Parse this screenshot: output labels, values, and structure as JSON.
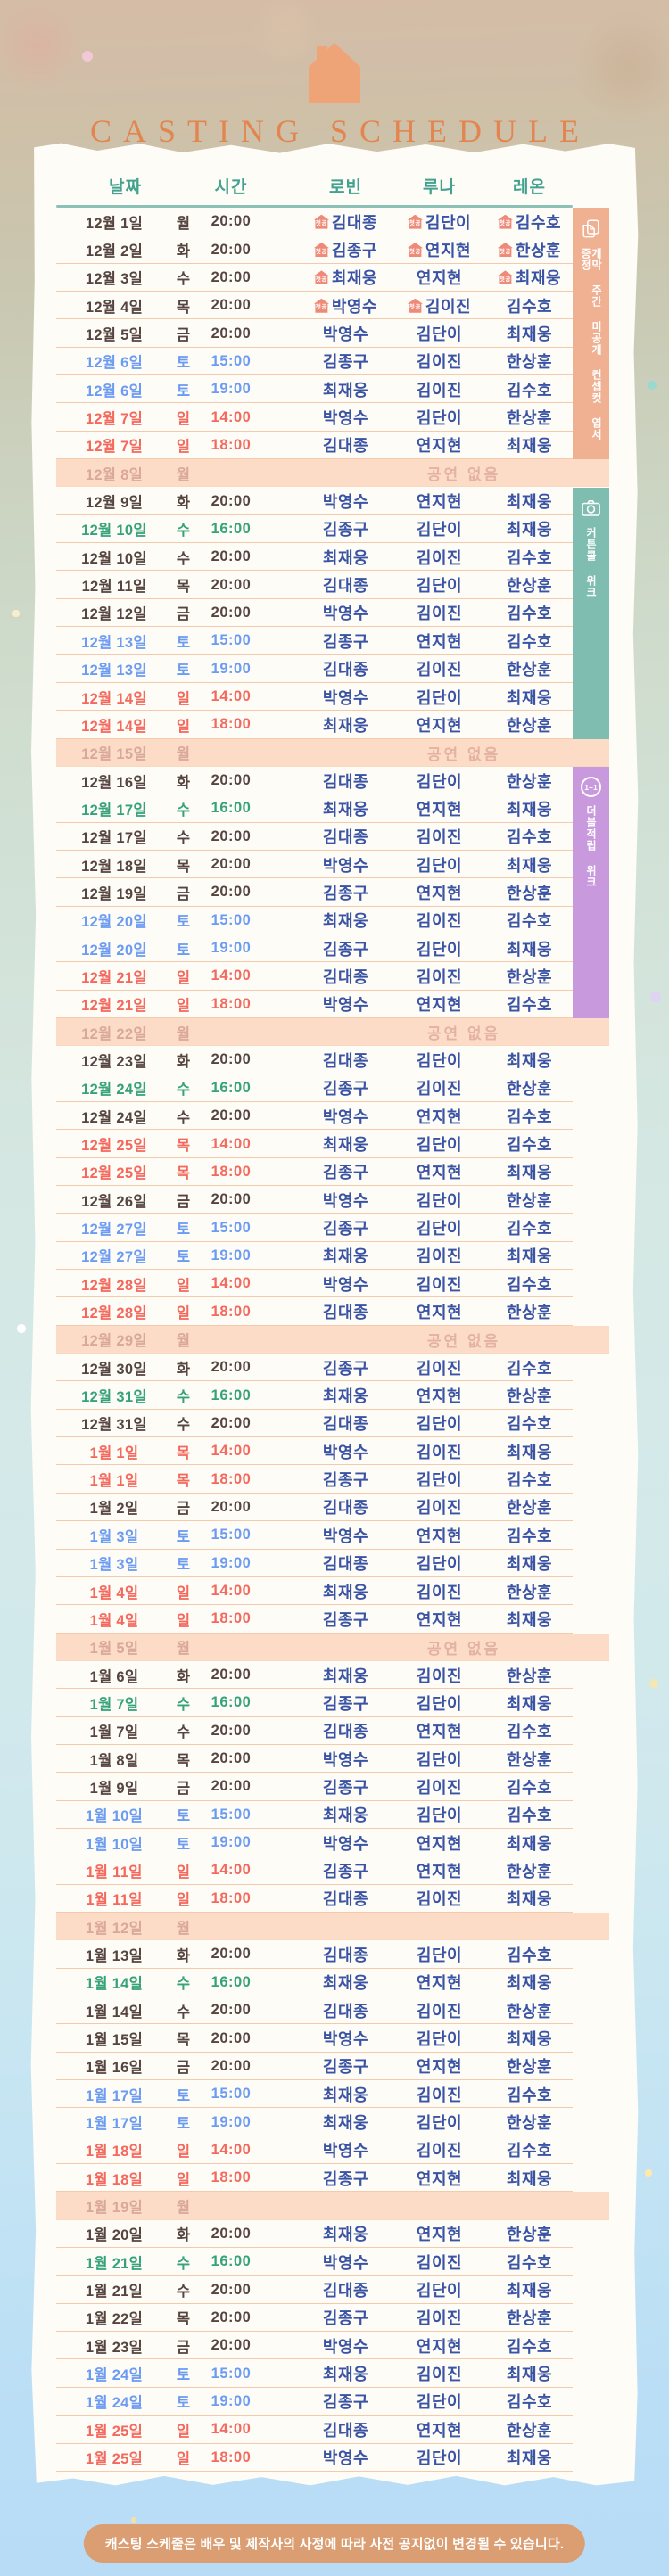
{
  "title": "CASTING SCHEDULE",
  "footer_note": "캐스팅 스케줄은 배우 및 제작사의 사정에 따라 사전 공지없이 변경될 수 있습니다.",
  "no_show_label": "공연 없음",
  "badge_label": "첫공",
  "colors": {
    "weekday": "#554440",
    "saturday": "#6b9bf2",
    "sunday": "#f4685d",
    "matinee": "#35a279",
    "noshow_text": "#d9a89a",
    "noshow_label": "#e3b2a1",
    "noshow_bg": "#fcdcc6",
    "name": "#3b53a4",
    "badge_bg": "#ef8a79",
    "header": "#43a18f",
    "title_accent": "#e2854f",
    "logo": "#efa478"
  },
  "side_events": [
    {
      "id": "opening-week",
      "icon": "postcard-icon",
      "label": "개막 주간 미공개 컨셉컷 엽서 증정",
      "color": "#f0b092",
      "row_start": 1,
      "row_end": 9
    },
    {
      "id": "curtain-call-week",
      "icon": "camera-icon",
      "label": "커튼콜 위크",
      "color": "#7fbdb0",
      "row_start": 11,
      "row_end": 19
    },
    {
      "id": "double-points-week",
      "icon": "one-plus-one-icon",
      "icon_text": "1+1",
      "label": "더블적립 위크",
      "color": "#c89add",
      "row_start": 21,
      "row_end": 29
    }
  ],
  "table": {
    "columns": [
      "날짜",
      "시간",
      "로빈",
      "루나",
      "레온"
    ],
    "rows": [
      {
        "date": "12월 1일",
        "day": "월",
        "time": "20:00",
        "type": "weekday",
        "robin": "김대종",
        "luna": "김단이",
        "leon": "김수호",
        "debut": [
          "robin",
          "luna",
          "leon"
        ]
      },
      {
        "date": "12월 2일",
        "day": "화",
        "time": "20:00",
        "type": "weekday",
        "robin": "김종구",
        "luna": "연지현",
        "leon": "한상훈",
        "debut": [
          "robin",
          "luna",
          "leon"
        ]
      },
      {
        "date": "12월 3일",
        "day": "수",
        "time": "20:00",
        "type": "weekday",
        "robin": "최재웅",
        "luna": "연지현",
        "leon": "최재웅",
        "debut": [
          "robin",
          "leon"
        ]
      },
      {
        "date": "12월 4일",
        "day": "목",
        "time": "20:00",
        "type": "weekday",
        "robin": "박영수",
        "luna": "김이진",
        "leon": "김수호",
        "debut": [
          "robin",
          "luna"
        ]
      },
      {
        "date": "12월 5일",
        "day": "금",
        "time": "20:00",
        "type": "weekday",
        "robin": "박영수",
        "luna": "김단이",
        "leon": "최재웅"
      },
      {
        "date": "12월 6일",
        "day": "토",
        "time": "15:00",
        "type": "saturday",
        "robin": "김종구",
        "luna": "김이진",
        "leon": "한상훈"
      },
      {
        "date": "12월 6일",
        "day": "토",
        "time": "19:00",
        "type": "saturday",
        "robin": "최재웅",
        "luna": "김이진",
        "leon": "김수호"
      },
      {
        "date": "12월 7일",
        "day": "일",
        "time": "14:00",
        "type": "sunday",
        "robin": "박영수",
        "luna": "김단이",
        "leon": "한상훈"
      },
      {
        "date": "12월 7일",
        "day": "일",
        "time": "18:00",
        "type": "sunday",
        "robin": "김대종",
        "luna": "연지현",
        "leon": "최재웅"
      },
      {
        "date": "12월 8일",
        "day": "월",
        "type": "noshow",
        "show_label": true
      },
      {
        "date": "12월 9일",
        "day": "화",
        "time": "20:00",
        "type": "weekday",
        "robin": "박영수",
        "luna": "연지현",
        "leon": "최재웅"
      },
      {
        "date": "12월 10일",
        "day": "수",
        "time": "16:00",
        "type": "matinee",
        "robin": "김종구",
        "luna": "김단이",
        "leon": "최재웅"
      },
      {
        "date": "12월 10일",
        "day": "수",
        "time": "20:00",
        "type": "weekday",
        "robin": "최재웅",
        "luna": "김이진",
        "leon": "김수호"
      },
      {
        "date": "12월 11일",
        "day": "목",
        "time": "20:00",
        "type": "weekday",
        "robin": "김대종",
        "luna": "김단이",
        "leon": "한상훈"
      },
      {
        "date": "12월 12일",
        "day": "금",
        "time": "20:00",
        "type": "weekday",
        "robin": "박영수",
        "luna": "김이진",
        "leon": "김수호"
      },
      {
        "date": "12월 13일",
        "day": "토",
        "time": "15:00",
        "type": "saturday",
        "robin": "김종구",
        "luna": "연지현",
        "leon": "김수호"
      },
      {
        "date": "12월 13일",
        "day": "토",
        "time": "19:00",
        "type": "saturday",
        "robin": "김대종",
        "luna": "김이진",
        "leon": "한상훈"
      },
      {
        "date": "12월 14일",
        "day": "일",
        "time": "14:00",
        "type": "sunday",
        "robin": "박영수",
        "luna": "김단이",
        "leon": "최재웅"
      },
      {
        "date": "12월 14일",
        "day": "일",
        "time": "18:00",
        "type": "sunday",
        "robin": "최재웅",
        "luna": "연지현",
        "leon": "한상훈"
      },
      {
        "date": "12월 15일",
        "day": "월",
        "type": "noshow",
        "show_label": true
      },
      {
        "date": "12월 16일",
        "day": "화",
        "time": "20:00",
        "type": "weekday",
        "robin": "김대종",
        "luna": "김단이",
        "leon": "한상훈"
      },
      {
        "date": "12월 17일",
        "day": "수",
        "time": "16:00",
        "type": "matinee",
        "robin": "최재웅",
        "luna": "연지현",
        "leon": "최재웅"
      },
      {
        "date": "12월 17일",
        "day": "수",
        "time": "20:00",
        "type": "weekday",
        "robin": "김대종",
        "luna": "김이진",
        "leon": "김수호"
      },
      {
        "date": "12월 18일",
        "day": "목",
        "time": "20:00",
        "type": "weekday",
        "robin": "박영수",
        "luna": "김단이",
        "leon": "최재웅"
      },
      {
        "date": "12월 19일",
        "day": "금",
        "time": "20:00",
        "type": "weekday",
        "robin": "김종구",
        "luna": "연지현",
        "leon": "한상훈"
      },
      {
        "date": "12월 20일",
        "day": "토",
        "time": "15:00",
        "type": "saturday",
        "robin": "최재웅",
        "luna": "김이진",
        "leon": "김수호"
      },
      {
        "date": "12월 20일",
        "day": "토",
        "time": "19:00",
        "type": "saturday",
        "robin": "김종구",
        "luna": "김단이",
        "leon": "최재웅"
      },
      {
        "date": "12월 21일",
        "day": "일",
        "time": "14:00",
        "type": "sunday",
        "robin": "김대종",
        "luna": "김이진",
        "leon": "한상훈"
      },
      {
        "date": "12월 21일",
        "day": "일",
        "time": "18:00",
        "type": "sunday",
        "robin": "박영수",
        "luna": "연지현",
        "leon": "김수호"
      },
      {
        "date": "12월 22일",
        "day": "월",
        "type": "noshow",
        "show_label": true
      },
      {
        "date": "12월 23일",
        "day": "화",
        "time": "20:00",
        "type": "weekday",
        "robin": "김대종",
        "luna": "김단이",
        "leon": "최재웅"
      },
      {
        "date": "12월 24일",
        "day": "수",
        "time": "16:00",
        "type": "matinee",
        "robin": "김종구",
        "luna": "김이진",
        "leon": "한상훈"
      },
      {
        "date": "12월 24일",
        "day": "수",
        "time": "20:00",
        "type": "weekday",
        "robin": "박영수",
        "luna": "연지현",
        "leon": "김수호"
      },
      {
        "date": "12월 25일",
        "day": "목",
        "time": "14:00",
        "type": "sunday",
        "robin": "최재웅",
        "luna": "김단이",
        "leon": "김수호"
      },
      {
        "date": "12월 25일",
        "day": "목",
        "time": "18:00",
        "type": "sunday",
        "robin": "김종구",
        "luna": "연지현",
        "leon": "최재웅"
      },
      {
        "date": "12월 26일",
        "day": "금",
        "time": "20:00",
        "type": "weekday",
        "robin": "박영수",
        "luna": "김단이",
        "leon": "한상훈"
      },
      {
        "date": "12월 27일",
        "day": "토",
        "time": "15:00",
        "type": "saturday",
        "robin": "김종구",
        "luna": "김단이",
        "leon": "김수호"
      },
      {
        "date": "12월 27일",
        "day": "토",
        "time": "19:00",
        "type": "saturday",
        "robin": "최재웅",
        "luna": "김이진",
        "leon": "최재웅"
      },
      {
        "date": "12월 28일",
        "day": "일",
        "time": "14:00",
        "type": "sunday",
        "robin": "박영수",
        "luna": "김이진",
        "leon": "김수호"
      },
      {
        "date": "12월 28일",
        "day": "일",
        "time": "18:00",
        "type": "sunday",
        "robin": "김대종",
        "luna": "연지현",
        "leon": "한상훈"
      },
      {
        "date": "12월 29일",
        "day": "월",
        "type": "noshow",
        "show_label": true
      },
      {
        "date": "12월 30일",
        "day": "화",
        "time": "20:00",
        "type": "weekday",
        "robin": "김종구",
        "luna": "김이진",
        "leon": "김수호"
      },
      {
        "date": "12월 31일",
        "day": "수",
        "time": "16:00",
        "type": "matinee",
        "robin": "최재웅",
        "luna": "연지현",
        "leon": "한상훈"
      },
      {
        "date": "12월 31일",
        "day": "수",
        "time": "20:00",
        "type": "weekday",
        "robin": "김대종",
        "luna": "김단이",
        "leon": "김수호"
      },
      {
        "date": "1월 1일",
        "day": "목",
        "time": "14:00",
        "type": "sunday",
        "robin": "박영수",
        "luna": "김이진",
        "leon": "최재웅"
      },
      {
        "date": "1월 1일",
        "day": "목",
        "time": "18:00",
        "type": "sunday",
        "robin": "김종구",
        "luna": "김단이",
        "leon": "김수호"
      },
      {
        "date": "1월 2일",
        "day": "금",
        "time": "20:00",
        "type": "weekday",
        "robin": "김대종",
        "luna": "김이진",
        "leon": "한상훈"
      },
      {
        "date": "1월 3일",
        "day": "토",
        "time": "15:00",
        "type": "saturday",
        "robin": "박영수",
        "luna": "연지현",
        "leon": "김수호"
      },
      {
        "date": "1월 3일",
        "day": "토",
        "time": "19:00",
        "type": "saturday",
        "robin": "김대종",
        "luna": "김단이",
        "leon": "최재웅"
      },
      {
        "date": "1월 4일",
        "day": "일",
        "time": "14:00",
        "type": "sunday",
        "robin": "최재웅",
        "luna": "김이진",
        "leon": "한상훈"
      },
      {
        "date": "1월 4일",
        "day": "일",
        "time": "18:00",
        "type": "sunday",
        "robin": "김종구",
        "luna": "연지현",
        "leon": "최재웅"
      },
      {
        "date": "1월 5일",
        "day": "월",
        "type": "noshow",
        "show_label": true
      },
      {
        "date": "1월 6일",
        "day": "화",
        "time": "20:00",
        "type": "weekday",
        "robin": "최재웅",
        "luna": "김이진",
        "leon": "한상훈"
      },
      {
        "date": "1월 7일",
        "day": "수",
        "time": "16:00",
        "type": "matinee",
        "robin": "김종구",
        "luna": "김단이",
        "leon": "최재웅"
      },
      {
        "date": "1월 7일",
        "day": "수",
        "time": "20:00",
        "type": "weekday",
        "robin": "김대종",
        "luna": "연지현",
        "leon": "김수호"
      },
      {
        "date": "1월 8일",
        "day": "목",
        "time": "20:00",
        "type": "weekday",
        "robin": "박영수",
        "luna": "김단이",
        "leon": "한상훈"
      },
      {
        "date": "1월 9일",
        "day": "금",
        "time": "20:00",
        "type": "weekday",
        "robin": "김종구",
        "luna": "김이진",
        "leon": "김수호"
      },
      {
        "date": "1월 10일",
        "day": "토",
        "time": "15:00",
        "type": "saturday",
        "robin": "최재웅",
        "luna": "김단이",
        "leon": "김수호"
      },
      {
        "date": "1월 10일",
        "day": "토",
        "time": "19:00",
        "type": "saturday",
        "robin": "박영수",
        "luna": "연지현",
        "leon": "최재웅"
      },
      {
        "date": "1월 11일",
        "day": "일",
        "time": "14:00",
        "type": "sunday",
        "robin": "김종구",
        "luna": "연지현",
        "leon": "한상훈"
      },
      {
        "date": "1월 11일",
        "day": "일",
        "time": "18:00",
        "type": "sunday",
        "robin": "김대종",
        "luna": "김이진",
        "leon": "최재웅"
      },
      {
        "date": "1월 12일",
        "day": "월",
        "type": "noshow",
        "show_label": false
      },
      {
        "date": "1월 13일",
        "day": "화",
        "time": "20:00",
        "type": "weekday",
        "robin": "김대종",
        "luna": "김단이",
        "leon": "김수호"
      },
      {
        "date": "1월 14일",
        "day": "수",
        "time": "16:00",
        "type": "matinee",
        "robin": "최재웅",
        "luna": "연지현",
        "leon": "최재웅"
      },
      {
        "date": "1월 14일",
        "day": "수",
        "time": "20:00",
        "type": "weekday",
        "robin": "김대종",
        "luna": "김이진",
        "leon": "한상훈"
      },
      {
        "date": "1월 15일",
        "day": "목",
        "time": "20:00",
        "type": "weekday",
        "robin": "박영수",
        "luna": "김단이",
        "leon": "최재웅"
      },
      {
        "date": "1월 16일",
        "day": "금",
        "time": "20:00",
        "type": "weekday",
        "robin": "김종구",
        "luna": "연지현",
        "leon": "한상훈"
      },
      {
        "date": "1월 17일",
        "day": "토",
        "time": "15:00",
        "type": "saturday",
        "robin": "최재웅",
        "luna": "김이진",
        "leon": "김수호"
      },
      {
        "date": "1월 17일",
        "day": "토",
        "time": "19:00",
        "type": "saturday",
        "robin": "최재웅",
        "luna": "김단이",
        "leon": "한상훈"
      },
      {
        "date": "1월 18일",
        "day": "일",
        "time": "14:00",
        "type": "sunday",
        "robin": "박영수",
        "luna": "김이진",
        "leon": "김수호"
      },
      {
        "date": "1월 18일",
        "day": "일",
        "time": "18:00",
        "type": "sunday",
        "robin": "김종구",
        "luna": "연지현",
        "leon": "최재웅"
      },
      {
        "date": "1월 19일",
        "day": "월",
        "type": "noshow",
        "show_label": false
      },
      {
        "date": "1월 20일",
        "day": "화",
        "time": "20:00",
        "type": "weekday",
        "robin": "최재웅",
        "luna": "연지현",
        "leon": "한상훈"
      },
      {
        "date": "1월 21일",
        "day": "수",
        "time": "16:00",
        "type": "matinee",
        "robin": "박영수",
        "luna": "김이진",
        "leon": "김수호"
      },
      {
        "date": "1월 21일",
        "day": "수",
        "time": "20:00",
        "type": "weekday",
        "robin": "김대종",
        "luna": "김단이",
        "leon": "최재웅"
      },
      {
        "date": "1월 22일",
        "day": "목",
        "time": "20:00",
        "type": "weekday",
        "robin": "김종구",
        "luna": "김이진",
        "leon": "한상훈"
      },
      {
        "date": "1월 23일",
        "day": "금",
        "time": "20:00",
        "type": "weekday",
        "robin": "박영수",
        "luna": "연지현",
        "leon": "김수호"
      },
      {
        "date": "1월 24일",
        "day": "토",
        "time": "15:00",
        "type": "saturday",
        "robin": "최재웅",
        "luna": "김이진",
        "leon": "최재웅"
      },
      {
        "date": "1월 24일",
        "day": "토",
        "time": "19:00",
        "type": "saturday",
        "robin": "김종구",
        "luna": "김단이",
        "leon": "김수호"
      },
      {
        "date": "1월 25일",
        "day": "일",
        "time": "14:00",
        "type": "sunday",
        "robin": "김대종",
        "luna": "연지현",
        "leon": "한상훈"
      },
      {
        "date": "1월 25일",
        "day": "일",
        "time": "18:00",
        "type": "sunday",
        "robin": "박영수",
        "luna": "김단이",
        "leon": "최재웅"
      }
    ]
  }
}
